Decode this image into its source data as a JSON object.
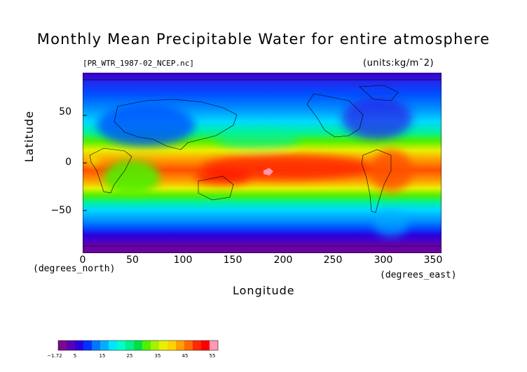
{
  "title": "Monthly Mean Precipitable Water for entire atmosphere",
  "file_label": "[PR_WTR_1987-02_NCEP.nc]",
  "units_label": "(units:kg/m¯2)",
  "axes": {
    "ylabel": "Latitude",
    "xlabel": "Longitude",
    "y_unit": "(degrees_north)",
    "x_unit": "(degrees_east)",
    "yticks": [
      "50",
      "0",
      "−50"
    ],
    "xticks": [
      "0",
      "50",
      "100",
      "150",
      "200",
      "250",
      "300",
      "350"
    ]
  },
  "colorbar": {
    "ticks": [
      "−1.72",
      "5",
      "15",
      "25",
      "35",
      "45",
      "55"
    ],
    "colors": [
      "#7a0a8c",
      "#5a00b4",
      "#2a00e0",
      "#0033ff",
      "#0077ff",
      "#00b0ff",
      "#00e6ff",
      "#00ffc8",
      "#00f08c",
      "#00e046",
      "#50f000",
      "#a8f000",
      "#e8f000",
      "#ffd200",
      "#ffa000",
      "#ff6a00",
      "#ff2a00",
      "#ff0000",
      "#ff9ab4"
    ]
  },
  "chart_data": {
    "type": "heatmap",
    "title": "Monthly Mean Precipitable Water for entire atmosphere",
    "subtitle": "[PR_WTR_1987-02_NCEP.nc]",
    "units": "kg/m¯2",
    "xlabel": "Longitude",
    "ylabel": "Latitude",
    "xlim": [
      0,
      357.5
    ],
    "ylim": [
      -90,
      90
    ],
    "value_range": [
      -1.72,
      55
    ],
    "zonal_profile_approx": [
      {
        "lat": 80,
        "value": 3
      },
      {
        "lat": 60,
        "value": 6
      },
      {
        "lat": 45,
        "value": 12
      },
      {
        "lat": 30,
        "value": 22
      },
      {
        "lat": 15,
        "value": 33
      },
      {
        "lat": 0,
        "value": 42
      },
      {
        "lat": -10,
        "value": 46
      },
      {
        "lat": -25,
        "value": 32
      },
      {
        "lat": -40,
        "value": 18
      },
      {
        "lat": -55,
        "value": 10
      },
      {
        "lat": -70,
        "value": 5
      },
      {
        "lat": -85,
        "value": 1
      }
    ],
    "max_region": {
      "lon": 180,
      "lat": -8,
      "value": 55
    }
  }
}
